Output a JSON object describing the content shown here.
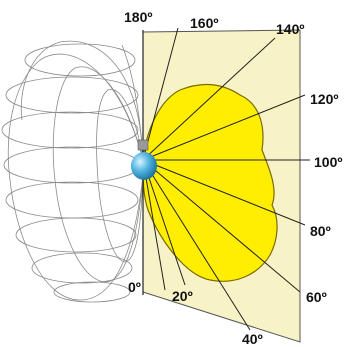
{
  "figure": {
    "angle_labels": [
      "180º",
      "160º",
      "140º",
      "120º",
      "100º",
      "80º",
      "60º",
      "40º",
      "20º",
      "0º"
    ]
  },
  "colors": {
    "plane": "#f8f3c6",
    "lobe": "#ffee00",
    "lobe_outline": "#7a6a00",
    "wireframe": "#8a8a8a",
    "bulb": "#4fb3e0"
  }
}
